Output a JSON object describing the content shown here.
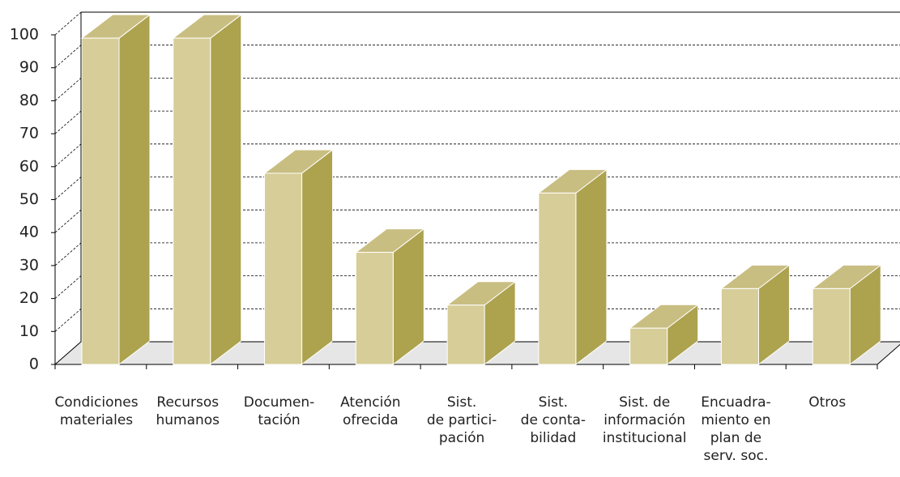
{
  "chart_data": {
    "type": "bar3d",
    "categories": [
      "Condiciones\nmateriales",
      "Recursos\nhumanos",
      "Documen-\ntación",
      "Atención\nofrecida",
      "Sist.\nde partici-\npación",
      "Sist.\nde conta-\nbilidad",
      "Sist. de\ninformación\ninstitucional",
      "Encuadra-\nmiento en\nplan de\nserv. soc.",
      "Otros"
    ],
    "values": [
      99,
      99,
      58,
      34,
      18,
      52,
      11,
      23,
      23
    ],
    "color": "#d6cd98",
    "ylim": [
      0,
      100
    ],
    "yticks": [
      0,
      10,
      20,
      30,
      40,
      50,
      60,
      70,
      80,
      90,
      100
    ],
    "grid": true
  }
}
